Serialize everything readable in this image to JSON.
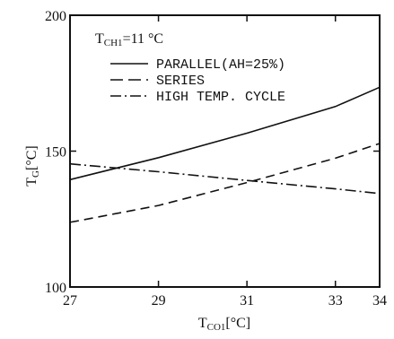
{
  "chart_data": {
    "type": "line",
    "xlabel_main": "T",
    "xlabel_sub": "CO1",
    "xlabel_unit": "[°C]",
    "ylabel_main": "T",
    "ylabel_sub": "G",
    "ylabel_unit": "[°C]",
    "condition_main": "T",
    "condition_sub": "CH1",
    "condition_value": "=11 °C",
    "xlim": [
      27,
      34
    ],
    "ylim": [
      100,
      200
    ],
    "x_ticks": [
      27,
      29,
      31,
      33,
      34
    ],
    "x_tick_labels": [
      "27",
      "29",
      "31",
      "33",
      "34"
    ],
    "y_ticks": [
      100,
      150,
      200
    ],
    "y_tick_labels": [
      "100",
      "150",
      "200"
    ],
    "grid": false,
    "legend_position": "top-left",
    "series": [
      {
        "name": "PARALLEL(AH=25%)",
        "style": "solid",
        "x": [
          27,
          29,
          31,
          33,
          34
        ],
        "y": [
          139.5,
          147.6,
          156.6,
          166.4,
          173.5
        ]
      },
      {
        "name": "SERIES",
        "style": "dashed",
        "x": [
          27,
          29,
          31,
          33,
          34
        ],
        "y": [
          123.8,
          130.0,
          138.4,
          147.4,
          152.8
        ]
      },
      {
        "name": "HIGH TEMP. CYCLE",
        "style": "dashdot",
        "x": [
          27,
          29,
          31,
          33,
          34
        ],
        "y": [
          145.3,
          142.4,
          139.2,
          136.1,
          134.4
        ]
      }
    ]
  }
}
